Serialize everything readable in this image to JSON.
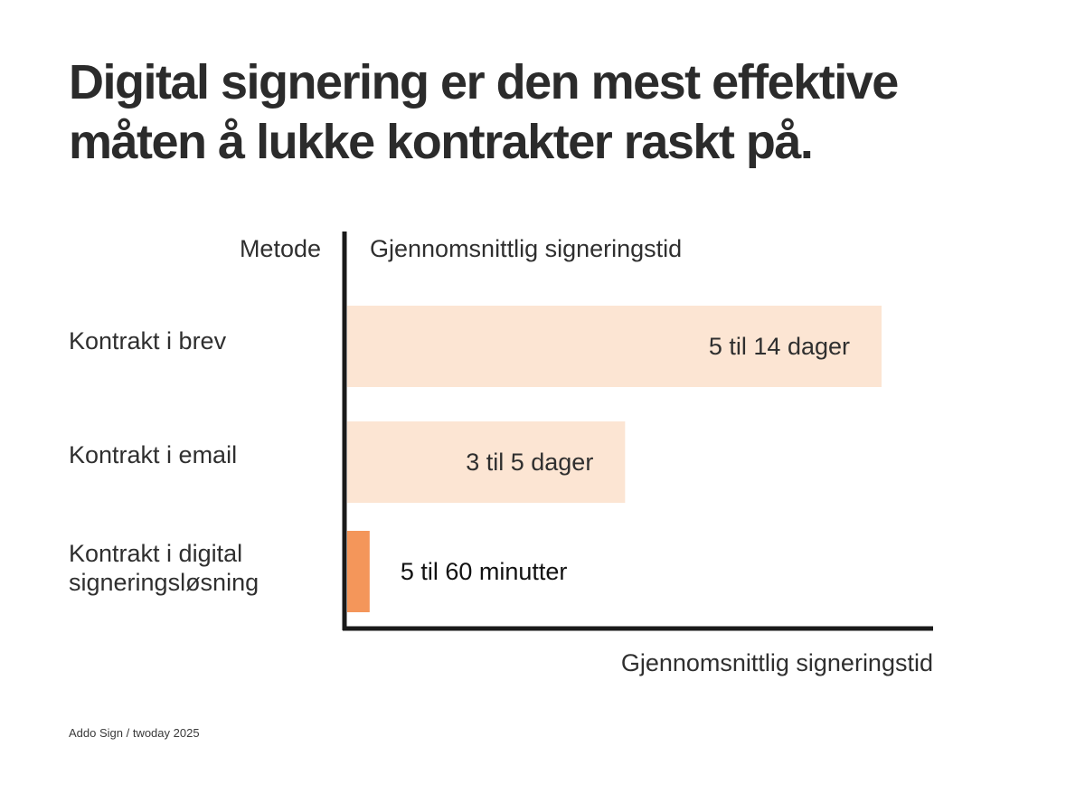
{
  "title_lines": [
    "Digital signering er den mest effektive",
    "måten å lukke kontrakter raskt på."
  ],
  "source": "Addo Sign / twoday 2025",
  "colors": {
    "light_bar": "#fce5d3",
    "highlight_bar": "#f4965a",
    "axis": "#1a1a1a",
    "text": "#2f2f2f"
  },
  "chart_data": {
    "type": "bar",
    "orientation": "horizontal",
    "title": "Digital signering er den mest effektive måten å lukke kontrakter raskt på.",
    "category_header": "Metode",
    "value_header": "Gjennomsnittlig signeringstid",
    "xlabel": "Gjennomsnittlig signeringstid",
    "ylabel": "Metode",
    "grid": false,
    "xlim": [
      0,
      100
    ],
    "bars": [
      {
        "category_lines": [
          "Kontrakt i brev"
        ],
        "value": 100,
        "label": "5 til 14 dager",
        "label_position": "inside",
        "highlight": false
      },
      {
        "category_lines": [
          "Kontrakt i email"
        ],
        "value": 52,
        "label": "3 til 5 dager",
        "label_position": "inside",
        "highlight": false
      },
      {
        "category_lines": [
          "Kontrakt i digital",
          "signeringsløsning"
        ],
        "value": 4.2,
        "label": "5 til 60 minutter",
        "label_position": "outside",
        "highlight": true
      }
    ]
  }
}
